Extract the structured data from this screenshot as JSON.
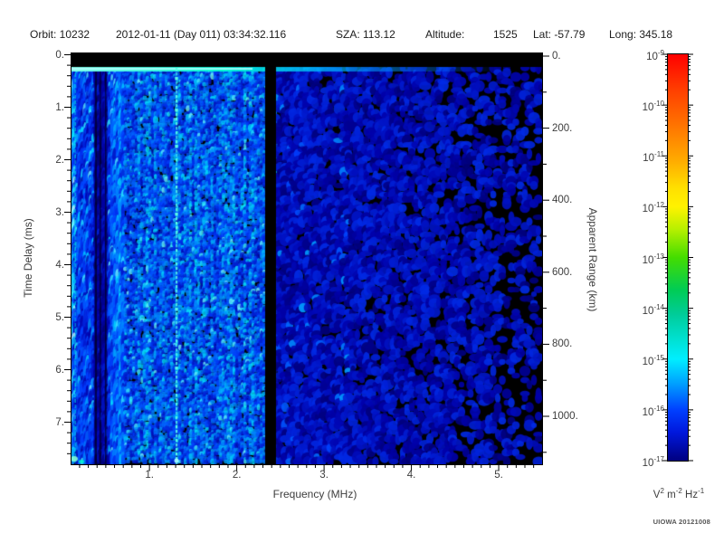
{
  "header": {
    "orbit": "Orbit: 10232",
    "datetime": "2012-01-11 (Day 011) 03:34:32.116",
    "sza": "SZA: 113.12",
    "altitude_label": "Altitude:",
    "altitude_value": "1525",
    "lat": "Lat: -57.79",
    "long": "Long: 345.18"
  },
  "axes": {
    "x_title": "Frequency (MHz)",
    "y_left_title": "Time Delay (ms)",
    "y_right_title": "Apparent Range (km)",
    "x_tick_labels": [
      "1.",
      "2.",
      "3.",
      "4.",
      "5."
    ],
    "y_left_tick_labels": [
      "0.",
      "1.",
      "2.",
      "3.",
      "4.",
      "5.",
      "6.",
      "7."
    ],
    "y_right_tick_labels": [
      "0.",
      "200.",
      "400.",
      "600.",
      "800.",
      "1000."
    ]
  },
  "colorbar": {
    "mantissa": "10",
    "tick_exponents": [
      "-9",
      "-10",
      "-11",
      "-12",
      "-13",
      "-14",
      "-15",
      "-16",
      "-17"
    ],
    "units": {
      "v": "V",
      "v_exp": "2",
      "m": "m",
      "m_exp": "-2",
      "hz": "Hz",
      "hz_exp": "-1"
    }
  },
  "credit": "UIOWA 20121008",
  "chart_data": {
    "type": "heatmap",
    "title": "",
    "xlabel": "Frequency (MHz)",
    "ylabel": "Time Delay (ms)",
    "y2label": "Apparent Range (km)",
    "xlim": [
      0.1,
      5.5
    ],
    "ylim": [
      0,
      7.8
    ],
    "y2lim": [
      0,
      1170
    ],
    "x_ticks": [
      1,
      2,
      3,
      4,
      5
    ],
    "x_minor_step": 0.1,
    "y_ticks": [
      0,
      1,
      2,
      3,
      4,
      5,
      6,
      7
    ],
    "y_minor_step": 0.2,
    "y2_ticks": [
      0,
      200,
      400,
      600,
      800,
      1000
    ],
    "y2_minor_step": 100,
    "color_scale": {
      "type": "log",
      "min": 1e-17,
      "max": 1e-09,
      "units": "V^2 m^-2 Hz^-1",
      "palette": "rainbow: red 1e-9, orange 1e-11, yellow 1e-12, green 1e-13, cyan 1e-15, blue 1e-16, dark navy 1e-17",
      "tick_values": [
        1e-09,
        1e-10,
        1e-11,
        1e-12,
        1e-13,
        1e-14,
        1e-15,
        1e-16,
        1e-17
      ]
    },
    "features": [
      {
        "name": "transmit-blank band",
        "desc": "solid black horizontal band from 0 to ~0.22 ms across all frequencies"
      },
      {
        "name": "echo-trace",
        "desc": "bright cyan horizontal line at ~0.25 ms (~40 km apparent range), strongest 0.1-2.3 MHz, fading out near 5 MHz"
      },
      {
        "name": "interference-line",
        "desc": "bright cyan dashed vertical line at ~1.31 MHz spanning all delays"
      },
      {
        "name": "attenuated-band",
        "desc": "dark vertical band ~0.36-0.52 MHz"
      },
      {
        "name": "data-gap",
        "desc": "solid black vertical band ~2.32-2.45 MHz spanning all delays"
      },
      {
        "name": "noise-floor",
        "desc": "mottled blue/cyan speckle noise ~1e-16 to 1e-15, densest below 2.3 MHz, thinning to black patches above ~4 MHz"
      }
    ]
  }
}
